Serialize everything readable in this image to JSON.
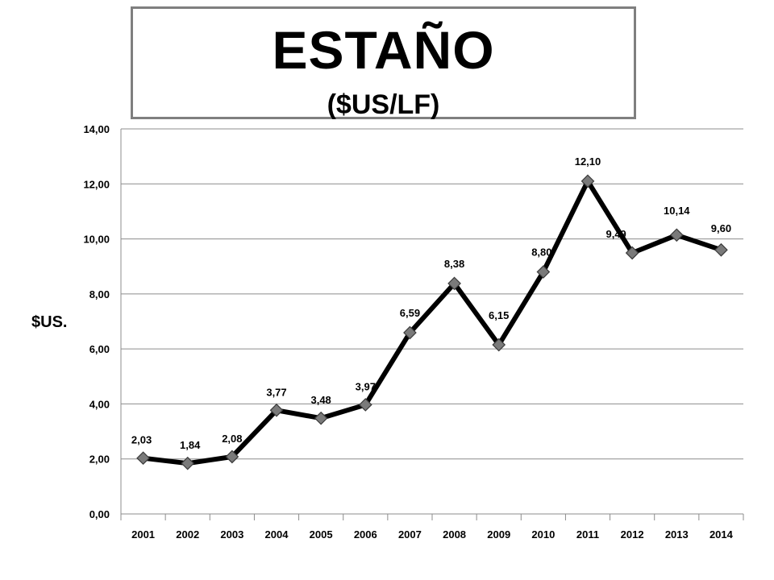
{
  "chart_data": {
    "type": "line",
    "title": "ESTAÑO",
    "subtitle": "($US/LF)",
    "ylabel": "$US.",
    "xlabel": "",
    "categories": [
      "2001",
      "2002",
      "2003",
      "2004",
      "2005",
      "2006",
      "2007",
      "2008",
      "2009",
      "2010",
      "2011",
      "2012",
      "2013",
      "2014"
    ],
    "series": [
      {
        "values": [
          2.03,
          1.84,
          2.08,
          3.77,
          3.48,
          3.97,
          6.59,
          8.38,
          6.15,
          8.8,
          12.1,
          9.49,
          10.14,
          9.6
        ],
        "data_labels": [
          "2,03",
          "1,84",
          "2,08",
          "3,77",
          "3,48",
          "3,97",
          "6,59",
          "8,38",
          "6,15",
          "8,80",
          "12,10",
          "9,49",
          "10,14",
          "9,60"
        ],
        "line_color": "#000000",
        "marker_color": "#7a7a7a"
      }
    ],
    "ylim": [
      0,
      14
    ],
    "yticks": [
      0,
      2,
      4,
      6,
      8,
      10,
      12,
      14
    ],
    "ytick_labels": [
      "0,00",
      "2,00",
      "4,00",
      "6,00",
      "8,00",
      "10,00",
      "12,00",
      "14,00"
    ],
    "grid": true,
    "legend": "none"
  }
}
